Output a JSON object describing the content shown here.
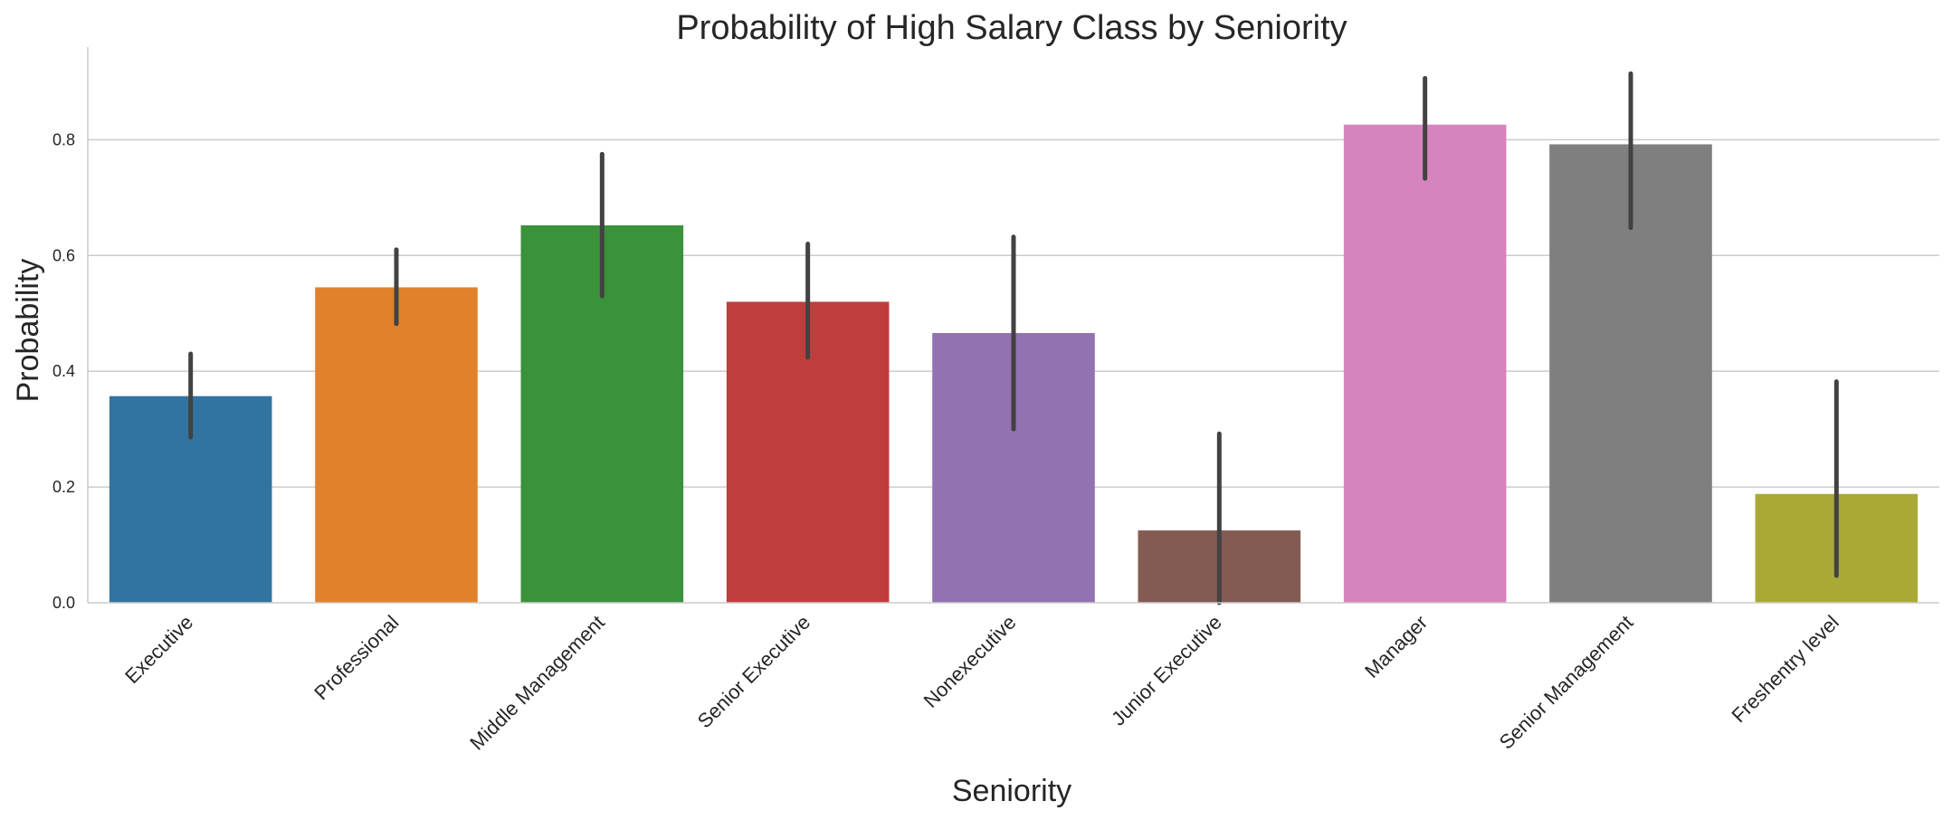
{
  "chart_data": {
    "type": "bar",
    "title": "Probability of High Salary Class by Seniority",
    "xlabel": "Seniority",
    "ylabel": "Probability",
    "ylim": [
      0,
      0.96
    ],
    "yticks": [
      "0.0",
      "0.2",
      "0.4",
      "0.6",
      "0.8"
    ],
    "ytick_values": [
      0,
      0.2,
      0.4,
      0.6,
      0.8
    ],
    "grid": "horizontal",
    "categories": [
      "Executive",
      "Professional",
      "Middle Management",
      "Senior Executive",
      "Nonexecutive",
      "Junior Executive",
      "Manager",
      "Senior Management",
      "Freshentry level"
    ],
    "values": [
      0.357,
      0.545,
      0.652,
      0.52,
      0.466,
      0.125,
      0.826,
      0.792,
      0.188
    ],
    "ci_low": [
      0.286,
      0.482,
      0.53,
      0.424,
      0.3,
      0.0,
      0.733,
      0.648,
      0.047
    ],
    "ci_high": [
      0.43,
      0.61,
      0.775,
      0.62,
      0.632,
      0.292,
      0.906,
      0.914,
      0.382
    ],
    "colors": [
      "#3274a1",
      "#e1812c",
      "#3a923a",
      "#c03d3e",
      "#9372b2",
      "#845b53",
      "#d684bd",
      "#7f7f7f",
      "#a9aa35"
    ]
  }
}
